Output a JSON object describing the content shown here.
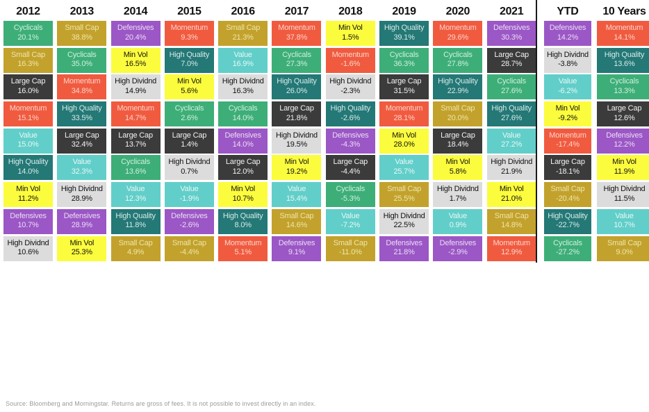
{
  "divider_color": "#1a1a1a",
  "footer": {
    "source_text": "Source: Bloomberg and Morningstar. Returns are gross of fees. It is not possible to invest directly in an index."
  },
  "factor_colors": {
    "Cyclicals": {
      "bg": "#3EAE78",
      "text": "#CFF0DE"
    },
    "Small Cap": {
      "bg": "#C2A22C",
      "text": "#F0E4AC"
    },
    "Large Cap": {
      "bg": "#3B3B3B",
      "text": "#F2F2F2"
    },
    "Momentum": {
      "bg": "#F05B40",
      "text": "#FCD5CA"
    },
    "Value": {
      "bg": "#62CEC9",
      "text": "#E6F8F6"
    },
    "High Quality": {
      "bg": "#247876",
      "text": "#D6EAE8"
    },
    "Min Vol": {
      "bg": "#FCFC3E",
      "text": "#111111"
    },
    "Defensives": {
      "bg": "#9B57C5",
      "text": "#EBDCF5"
    },
    "High Dividnd": {
      "bg": "#DCDCDC",
      "text": "#111111"
    }
  },
  "chart_data": {
    "type": "table",
    "title": "",
    "description": "Periodic table of factor/style index returns ranked best-to-worst within each period",
    "legend_position": "none",
    "grid": false,
    "columns": [
      {
        "period": "2012",
        "cells": [
          {
            "factor": "Cyclicals",
            "return": "20.1%"
          },
          {
            "factor": "Small Cap",
            "return": "16.3%"
          },
          {
            "factor": "Large Cap",
            "return": "16.0%"
          },
          {
            "factor": "Momentum",
            "return": "15.1%"
          },
          {
            "factor": "Value",
            "return": "15.0%"
          },
          {
            "factor": "High Quality",
            "return": "14.0%"
          },
          {
            "factor": "Min Vol",
            "return": "11.2%"
          },
          {
            "factor": "Defensives",
            "return": "10.7%"
          },
          {
            "factor": "High Dividnd",
            "return": "10.6%"
          }
        ]
      },
      {
        "period": "2013",
        "cells": [
          {
            "factor": "Small Cap",
            "return": "38.8%"
          },
          {
            "factor": "Cyclicals",
            "return": "35.0%"
          },
          {
            "factor": "Momentum",
            "return": "34.8%"
          },
          {
            "factor": "High Quality",
            "return": "33.5%"
          },
          {
            "factor": "Large Cap",
            "return": "32.4%"
          },
          {
            "factor": "Value",
            "return": "32.3%"
          },
          {
            "factor": "High Dividnd",
            "return": "28.9%"
          },
          {
            "factor": "Defensives",
            "return": "28.9%"
          },
          {
            "factor": "Min Vol",
            "return": "25.3%"
          }
        ]
      },
      {
        "period": "2014",
        "cells": [
          {
            "factor": "Defensives",
            "return": "20.4%"
          },
          {
            "factor": "Min Vol",
            "return": "16.5%"
          },
          {
            "factor": "High Dividnd",
            "return": "14.9%"
          },
          {
            "factor": "Momentum",
            "return": "14.7%"
          },
          {
            "factor": "Large Cap",
            "return": "13.7%"
          },
          {
            "factor": "Cyclicals",
            "return": "13.6%"
          },
          {
            "factor": "Value",
            "return": "12.3%"
          },
          {
            "factor": "High Quality",
            "return": "11.8%"
          },
          {
            "factor": "Small Cap",
            "return": "4.9%"
          }
        ]
      },
      {
        "period": "2015",
        "cells": [
          {
            "factor": "Momentum",
            "return": "9.3%"
          },
          {
            "factor": "High Quality",
            "return": "7.0%"
          },
          {
            "factor": "Min Vol",
            "return": "5.6%"
          },
          {
            "factor": "Cyclicals",
            "return": "2.6%"
          },
          {
            "factor": "Large Cap",
            "return": "1.4%"
          },
          {
            "factor": "High Dividnd",
            "return": "0.7%"
          },
          {
            "factor": "Value",
            "return": "-1.9%"
          },
          {
            "factor": "Defensives",
            "return": "-2.6%"
          },
          {
            "factor": "Small Cap",
            "return": "-4.4%"
          }
        ]
      },
      {
        "period": "2016",
        "cells": [
          {
            "factor": "Small Cap",
            "return": "21.3%"
          },
          {
            "factor": "Value",
            "return": "16.9%"
          },
          {
            "factor": "High Dividnd",
            "return": "16.3%"
          },
          {
            "factor": "Cyclicals",
            "return": "14.0%"
          },
          {
            "factor": "Defensives",
            "return": "14.0%"
          },
          {
            "factor": "Large Cap",
            "return": "12.0%"
          },
          {
            "factor": "Min Vol",
            "return": "10.7%"
          },
          {
            "factor": "High Quality",
            "return": "8.0%"
          },
          {
            "factor": "Momentum",
            "return": "5.1%"
          }
        ]
      },
      {
        "period": "2017",
        "cells": [
          {
            "factor": "Momentum",
            "return": "37.8%"
          },
          {
            "factor": "Cyclicals",
            "return": "27.3%"
          },
          {
            "factor": "High Quality",
            "return": "26.0%"
          },
          {
            "factor": "Large Cap",
            "return": "21.8%"
          },
          {
            "factor": "High Dividnd",
            "return": "19.5%"
          },
          {
            "factor": "Min Vol",
            "return": "19.2%"
          },
          {
            "factor": "Value",
            "return": "15.4%"
          },
          {
            "factor": "Small Cap",
            "return": "14.6%"
          },
          {
            "factor": "Defensives",
            "return": "9.1%"
          }
        ]
      },
      {
        "period": "2018",
        "cells": [
          {
            "factor": "Min Vol",
            "return": "1.5%"
          },
          {
            "factor": "Momentum",
            "return": "-1.6%"
          },
          {
            "factor": "High Dividnd",
            "return": "-2.3%"
          },
          {
            "factor": "High Quality",
            "return": "-2.6%"
          },
          {
            "factor": "Defensives",
            "return": "-4.3%"
          },
          {
            "factor": "Large Cap",
            "return": "-4.4%"
          },
          {
            "factor": "Cyclicals",
            "return": "-5.3%"
          },
          {
            "factor": "Value",
            "return": "-7.2%"
          },
          {
            "factor": "Small Cap",
            "return": "-11.0%"
          }
        ]
      },
      {
        "period": "2019",
        "cells": [
          {
            "factor": "High Quality",
            "return": "39.1%"
          },
          {
            "factor": "Cyclicals",
            "return": "36.3%"
          },
          {
            "factor": "Large Cap",
            "return": "31.5%"
          },
          {
            "factor": "Momentum",
            "return": "28.1%"
          },
          {
            "factor": "Min Vol",
            "return": "28.0%"
          },
          {
            "factor": "Value",
            "return": "25.7%"
          },
          {
            "factor": "Small Cap",
            "return": "25.5%"
          },
          {
            "factor": "High Dividnd",
            "return": "22.5%"
          },
          {
            "factor": "Defensives",
            "return": "21.8%"
          }
        ]
      },
      {
        "period": "2020",
        "cells": [
          {
            "factor": "Momentum",
            "return": "29.6%"
          },
          {
            "factor": "Cyclicals",
            "return": "27.8%"
          },
          {
            "factor": "High Quality",
            "return": "22.9%"
          },
          {
            "factor": "Small Cap",
            "return": "20.0%"
          },
          {
            "factor": "Large Cap",
            "return": "18.4%"
          },
          {
            "factor": "Min Vol",
            "return": "5.8%"
          },
          {
            "factor": "High Dividnd",
            "return": "1.7%"
          },
          {
            "factor": "Value",
            "return": "0.9%"
          },
          {
            "factor": "Defensives",
            "return": "-2.9%"
          }
        ]
      },
      {
        "period": "2021",
        "cells": [
          {
            "factor": "Defensives",
            "return": "30.3%"
          },
          {
            "factor": "Large Cap",
            "return": "28.7%"
          },
          {
            "factor": "Cyclicals",
            "return": "27.6%"
          },
          {
            "factor": "High Quality",
            "return": "27.6%"
          },
          {
            "factor": "Value",
            "return": "27.2%"
          },
          {
            "factor": "High Dividnd",
            "return": "21.9%"
          },
          {
            "factor": "Min Vol",
            "return": "21.0%"
          },
          {
            "factor": "Small Cap",
            "return": "14.8%"
          },
          {
            "factor": "Momentum",
            "return": "12.9%"
          }
        ]
      },
      {
        "period": "YTD",
        "cells": [
          {
            "factor": "Defensives",
            "return": "14.2%"
          },
          {
            "factor": "High Dividnd",
            "return": "-3.8%"
          },
          {
            "factor": "Value",
            "return": "-6.2%"
          },
          {
            "factor": "Min Vol",
            "return": "-9.2%"
          },
          {
            "factor": "Momentum",
            "return": "-17.4%"
          },
          {
            "factor": "Large Cap",
            "return": "-18.1%"
          },
          {
            "factor": "Small Cap",
            "return": "-20.4%"
          },
          {
            "factor": "High Quality",
            "return": "-22.7%"
          },
          {
            "factor": "Cyclicals",
            "return": "-27.2%"
          }
        ]
      },
      {
        "period": "10 Years",
        "cells": [
          {
            "factor": "Momentum",
            "return": "14.1%"
          },
          {
            "factor": "High Quality",
            "return": "13.6%"
          },
          {
            "factor": "Cyclicals",
            "return": "13.3%"
          },
          {
            "factor": "Large Cap",
            "return": "12.6%"
          },
          {
            "factor": "Defensives",
            "return": "12.2%"
          },
          {
            "factor": "Min Vol",
            "return": "11.9%"
          },
          {
            "factor": "High Dividnd",
            "return": "11.5%"
          },
          {
            "factor": "Value",
            "return": "10.7%"
          },
          {
            "factor": "Small Cap",
            "return": "9.0%"
          }
        ]
      }
    ]
  }
}
